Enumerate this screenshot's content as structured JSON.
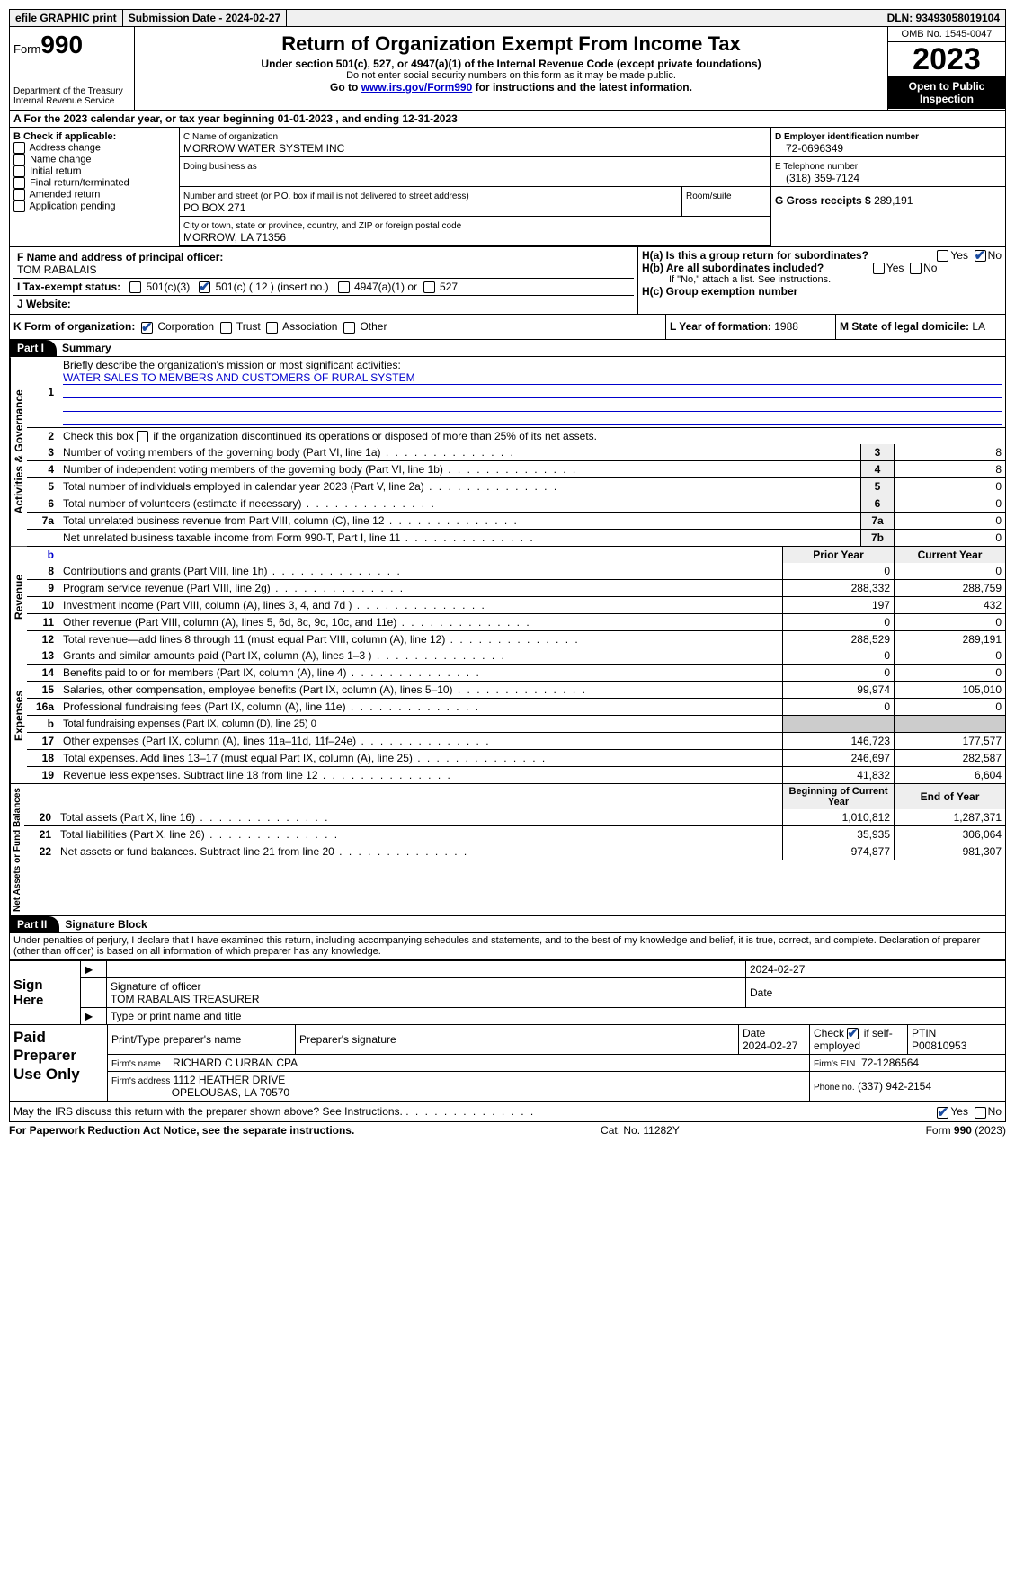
{
  "topbar": {
    "efile": "efile GRAPHIC print",
    "sub_label": "Submission Date - 2024-02-27",
    "dln_label": "DLN: 93493058019104"
  },
  "header": {
    "form_label": "Form",
    "form_no": "990",
    "dept": "Department of the Treasury",
    "irs": "Internal Revenue Service",
    "title": "Return of Organization Exempt From Income Tax",
    "sub1": "Under section 501(c), 527, or 4947(a)(1) of the Internal Revenue Code (except private foundations)",
    "sub2": "Do not enter social security numbers on this form as it may be made public.",
    "sub3_pre": "Go to ",
    "sub3_link": "www.irs.gov/Form990",
    "sub3_post": " for instructions and the latest information.",
    "omb": "OMB No. 1545-0047",
    "year": "2023",
    "open": "Open to Public Inspection"
  },
  "period": {
    "label_a": "A For the 2023 calendar year, or tax year beginning ",
    "begin": "01-01-2023",
    "mid": " , and ending ",
    "end": "12-31-2023"
  },
  "boxB": {
    "title": "B Check if applicable:",
    "items": [
      "Address change",
      "Name change",
      "Initial return",
      "Final return/terminated",
      "Amended return",
      "Application pending"
    ]
  },
  "boxC": {
    "name_lbl": "C Name of organization",
    "name": "MORROW WATER SYSTEM INC",
    "dba_lbl": "Doing business as",
    "street_lbl": "Number and street (or P.O. box if mail is not delivered to street address)",
    "street": "PO BOX 271",
    "room_lbl": "Room/suite",
    "city_lbl": "City or town, state or province, country, and ZIP or foreign postal code",
    "city": "MORROW, LA  71356"
  },
  "boxD": {
    "lbl": "D Employer identification number",
    "val": "72-0696349"
  },
  "boxE": {
    "lbl": "E Telephone number",
    "val": "(318) 359-7124"
  },
  "boxG": {
    "lbl": "G Gross receipts $",
    "val": "289,191"
  },
  "boxF": {
    "lbl": "F  Name and address of principal officer:",
    "val": "TOM RABALAIS"
  },
  "boxH": {
    "ha": "H(a)  Is this a group return for subordinates?",
    "hb": "H(b)  Are all subordinates included?",
    "hb_note": "If \"No,\" attach a list. See instructions.",
    "hc": "H(c)  Group exemption number",
    "yes": "Yes",
    "no": "No"
  },
  "taxexempt": {
    "i_lbl": "I   Tax-exempt status:",
    "c3": "501(c)(3)",
    "c": "501(c) ( 12 ) (insert no.)",
    "a1": "4947(a)(1) or",
    "s527": "527"
  },
  "boxJ": {
    "lbl": "J   Website:"
  },
  "boxK": {
    "lbl": "K Form of organization:",
    "opts": [
      "Corporation",
      "Trust",
      "Association",
      "Other"
    ]
  },
  "boxL": {
    "lbl": "L Year of formation: ",
    "val": "1988"
  },
  "boxM": {
    "lbl": "M State of legal domicile: ",
    "val": "LA"
  },
  "part1": {
    "hdr": "Part I",
    "title": "Summary",
    "l1a": "Briefly describe the organization's mission or most significant activities:",
    "l1b": "WATER SALES TO MEMBERS AND CUSTOMERS OF RURAL SYSTEM",
    "l2": "Check this box        if the organization discontinued its operations or disposed of more than 25% of its net assets.",
    "vert_ag": "Activities & Governance",
    "vert_rev": "Revenue",
    "vert_exp": "Expenses",
    "vert_na": "Net Assets or Fund Balances",
    "lines_ag": [
      {
        "n": "3",
        "d": "Number of voting members of the governing body (Part VI, line 1a)",
        "c": "3",
        "v": "8"
      },
      {
        "n": "4",
        "d": "Number of independent voting members of the governing body (Part VI, line 1b)",
        "c": "4",
        "v": "8"
      },
      {
        "n": "5",
        "d": "Total number of individuals employed in calendar year 2023 (Part V, line 2a)",
        "c": "5",
        "v": "0"
      },
      {
        "n": "6",
        "d": "Total number of volunteers (estimate if necessary)",
        "c": "6",
        "v": "0"
      },
      {
        "n": "7a",
        "d": "Total unrelated business revenue from Part VIII, column (C), line 12",
        "c": "7a",
        "v": "0"
      },
      {
        "n": "",
        "d": "Net unrelated business taxable income from Form 990-T, Part I, line 11",
        "c": "7b",
        "v": "0"
      }
    ],
    "col_prior": "Prior Year",
    "col_curr": "Current Year",
    "lines_rev": [
      {
        "n": "8",
        "d": "Contributions and grants (Part VIII, line 1h)",
        "p": "0",
        "c": "0"
      },
      {
        "n": "9",
        "d": "Program service revenue (Part VIII, line 2g)",
        "p": "288,332",
        "c": "288,759"
      },
      {
        "n": "10",
        "d": "Investment income (Part VIII, column (A), lines 3, 4, and 7d )",
        "p": "197",
        "c": "432"
      },
      {
        "n": "11",
        "d": "Other revenue (Part VIII, column (A), lines 5, 6d, 8c, 9c, 10c, and 11e)",
        "p": "0",
        "c": "0"
      },
      {
        "n": "12",
        "d": "Total revenue—add lines 8 through 11 (must equal Part VIII, column (A), line 12)",
        "p": "288,529",
        "c": "289,191"
      }
    ],
    "lines_exp": [
      {
        "n": "13",
        "d": "Grants and similar amounts paid (Part IX, column (A), lines 1–3 )",
        "p": "0",
        "c": "0"
      },
      {
        "n": "14",
        "d": "Benefits paid to or for members (Part IX, column (A), line 4)",
        "p": "0",
        "c": "0"
      },
      {
        "n": "15",
        "d": "Salaries, other compensation, employee benefits (Part IX, column (A), lines 5–10)",
        "p": "99,974",
        "c": "105,010"
      },
      {
        "n": "16a",
        "d": "Professional fundraising fees (Part IX, column (A), line 11e)",
        "p": "0",
        "c": "0"
      },
      {
        "n": "b",
        "d": "Total fundraising expenses (Part IX, column (D), line 25) 0",
        "p": "",
        "c": "",
        "shade": true,
        "small": true
      },
      {
        "n": "17",
        "d": "Other expenses (Part IX, column (A), lines 11a–11d, 11f–24e)",
        "p": "146,723",
        "c": "177,577"
      },
      {
        "n": "18",
        "d": "Total expenses. Add lines 13–17 (must equal Part IX, column (A), line 25)",
        "p": "246,697",
        "c": "282,587"
      },
      {
        "n": "19",
        "d": "Revenue less expenses. Subtract line 18 from line 12",
        "p": "41,832",
        "c": "6,604"
      }
    ],
    "col_beg": "Beginning of Current Year",
    "col_end": "End of Year",
    "lines_na": [
      {
        "n": "20",
        "d": "Total assets (Part X, line 16)",
        "p": "1,010,812",
        "c": "1,287,371"
      },
      {
        "n": "21",
        "d": "Total liabilities (Part X, line 26)",
        "p": "35,935",
        "c": "306,064"
      },
      {
        "n": "22",
        "d": "Net assets or fund balances. Subtract line 21 from line 20",
        "p": "974,877",
        "c": "981,307"
      }
    ]
  },
  "part2": {
    "hdr": "Part II",
    "title": "Signature Block",
    "decl": "Under penalties of perjury, I declare that I have examined this return, including accompanying schedules and statements, and to the best of my knowledge and belief, it is true, correct, and complete. Declaration of preparer (other than officer) is based on all information of which preparer has any knowledge.",
    "sign_here": "Sign Here",
    "sig_officer": "Signature of officer",
    "sig_name": "TOM RABALAIS  TREASURER",
    "sig_type": "Type or print name and title",
    "sig_date_lbl": "Date",
    "sig_date": "2024-02-27",
    "paid": "Paid Preparer Use Only",
    "prep_name_lbl": "Print/Type preparer's name",
    "prep_sig_lbl": "Preparer's signature",
    "prep_date_lbl": "Date",
    "prep_date": "2024-02-27",
    "prep_self": "Check         if self-employed",
    "ptin_lbl": "PTIN",
    "ptin": "P00810953",
    "firm_name_lbl": "Firm's name",
    "firm_name": "RICHARD C URBAN CPA",
    "firm_ein_lbl": "Firm's EIN",
    "firm_ein": "72-1286564",
    "firm_addr_lbl": "Firm's address",
    "firm_addr1": "1112 HEATHER DRIVE",
    "firm_addr2": "OPELOUSAS, LA  70570",
    "firm_phone_lbl": "Phone no.",
    "firm_phone": "(337) 942-2154",
    "discuss": "May the IRS discuss this return with the preparer shown above? See Instructions.",
    "yes": "Yes",
    "no": "No"
  },
  "footer": {
    "pra": "For Paperwork Reduction Act Notice, see the separate instructions.",
    "cat": "Cat. No. 11282Y",
    "form": "Form 990 (2023)"
  }
}
